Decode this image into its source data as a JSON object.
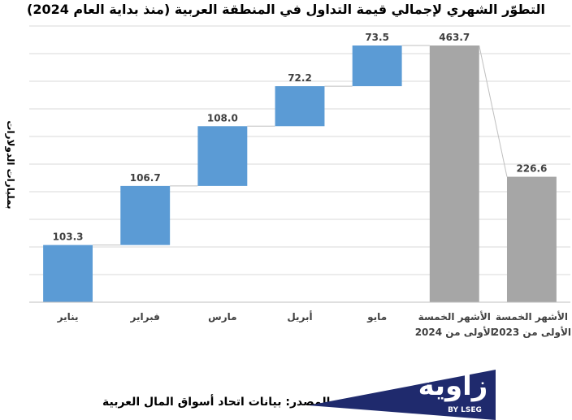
{
  "chart_data": {
    "type": "waterfall",
    "title": "التطوّر الشهري لإجمالي قيمة التداول في المنطقة العربية (منذ بداية العام 2024)",
    "ylabel": "بمليارات الدولارات",
    "categories": [
      "يناير",
      "فبراير",
      "مارس",
      "أبريل",
      "مايو",
      "الأشهر الخمسة الأولى من 2024",
      "الأشهر الخمسة الأولى من 2023"
    ],
    "values": [
      103.3,
      106.7,
      108.0,
      72.2,
      73.5,
      463.7,
      226.6
    ],
    "value_labels": [
      "103.3",
      "106.7",
      "108.0",
      "72.2",
      "73.5",
      "463.7",
      "226.6"
    ],
    "kinds": [
      "step",
      "step",
      "step",
      "step",
      "step",
      "total",
      "total"
    ],
    "ylim": [
      0,
      463.7
    ],
    "grid": true,
    "colors": {
      "step": "#5b9bd5",
      "total": "#a6a6a6",
      "grid": "#d9d9d9",
      "axis": "#bfbfbf"
    }
  },
  "source": "المصدر: بيانات اتحاد أسواق المال العربية",
  "logo": {
    "word": "زاوية",
    "sub": "BY LSEG",
    "color": "#1f2a6d"
  }
}
